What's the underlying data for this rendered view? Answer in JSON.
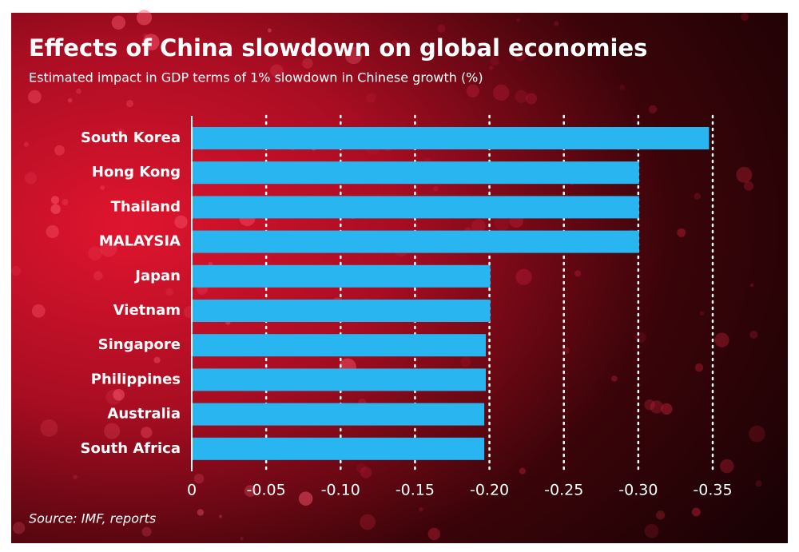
{
  "chart_data": {
    "type": "bar",
    "orientation": "horizontal",
    "title": "Effects of China slowdown on global economies",
    "subtitle": "Estimated impact in GDP terms of 1% slowdown in Chinese growth (%)",
    "source": "Source: IMF, reports",
    "categories": [
      "South Korea",
      "Hong Kong",
      "Thailand",
      "MALAYSIA",
      "Japan",
      "Vietnam",
      "Singapore",
      "Philippines",
      "Australia",
      "South Africa"
    ],
    "values": [
      -0.347,
      -0.3,
      -0.3,
      -0.3,
      -0.2,
      -0.2,
      -0.197,
      -0.197,
      -0.196,
      -0.196
    ],
    "color": "#29b6f0",
    "xlim": [
      0,
      -0.35
    ],
    "xticks": [
      0,
      -0.05,
      {
        "value": -0.1,
        "label": "-0.10"
      },
      -0.15,
      {
        "value": -0.2,
        "label": "-0.20"
      },
      -0.25,
      {
        "value": -0.3,
        "label": "-0.30"
      },
      -0.35
    ],
    "grid": true
  }
}
